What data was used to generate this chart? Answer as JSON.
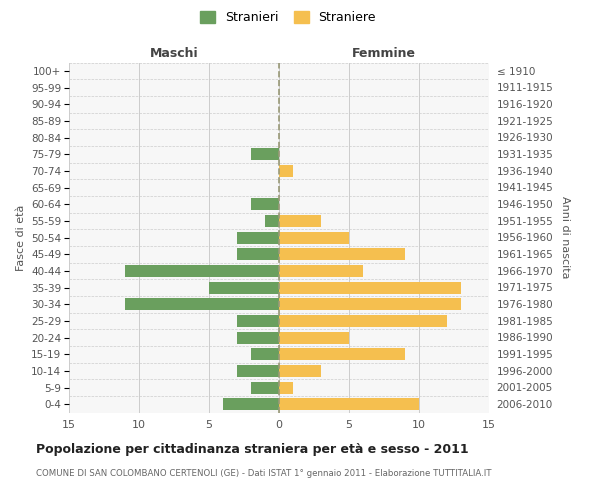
{
  "age_groups": [
    "0-4",
    "5-9",
    "10-14",
    "15-19",
    "20-24",
    "25-29",
    "30-34",
    "35-39",
    "40-44",
    "45-49",
    "50-54",
    "55-59",
    "60-64",
    "65-69",
    "70-74",
    "75-79",
    "80-84",
    "85-89",
    "90-94",
    "95-99",
    "100+"
  ],
  "birth_years": [
    "2006-2010",
    "2001-2005",
    "1996-2000",
    "1991-1995",
    "1986-1990",
    "1981-1985",
    "1976-1980",
    "1971-1975",
    "1966-1970",
    "1961-1965",
    "1956-1960",
    "1951-1955",
    "1946-1950",
    "1941-1945",
    "1936-1940",
    "1931-1935",
    "1926-1930",
    "1921-1925",
    "1916-1920",
    "1911-1915",
    "≤ 1910"
  ],
  "maschi": [
    4,
    2,
    3,
    2,
    3,
    3,
    11,
    5,
    11,
    3,
    3,
    1,
    2,
    0,
    0,
    2,
    0,
    0,
    0,
    0,
    0
  ],
  "femmine": [
    10,
    1,
    3,
    9,
    5,
    12,
    13,
    13,
    6,
    9,
    5,
    3,
    0,
    0,
    1,
    0,
    0,
    0,
    0,
    0,
    0
  ],
  "male_color": "#6a9f5e",
  "female_color": "#f5bf4f",
  "bg_color": "#f7f7f7",
  "grid_color": "#cccccc",
  "center_line_color": "#999977",
  "title": "Popolazione per cittadinanza straniera per età e sesso - 2011",
  "subtitle": "COMUNE DI SAN COLOMBANO CERTENOLI (GE) - Dati ISTAT 1° gennaio 2011 - Elaborazione TUTTITALIA.IT",
  "xlabel_left": "Maschi",
  "xlabel_right": "Femmine",
  "ylabel_left": "Fasce di età",
  "ylabel_right": "Anni di nascita",
  "legend_male": "Stranieri",
  "legend_female": "Straniere",
  "xlim": 15
}
